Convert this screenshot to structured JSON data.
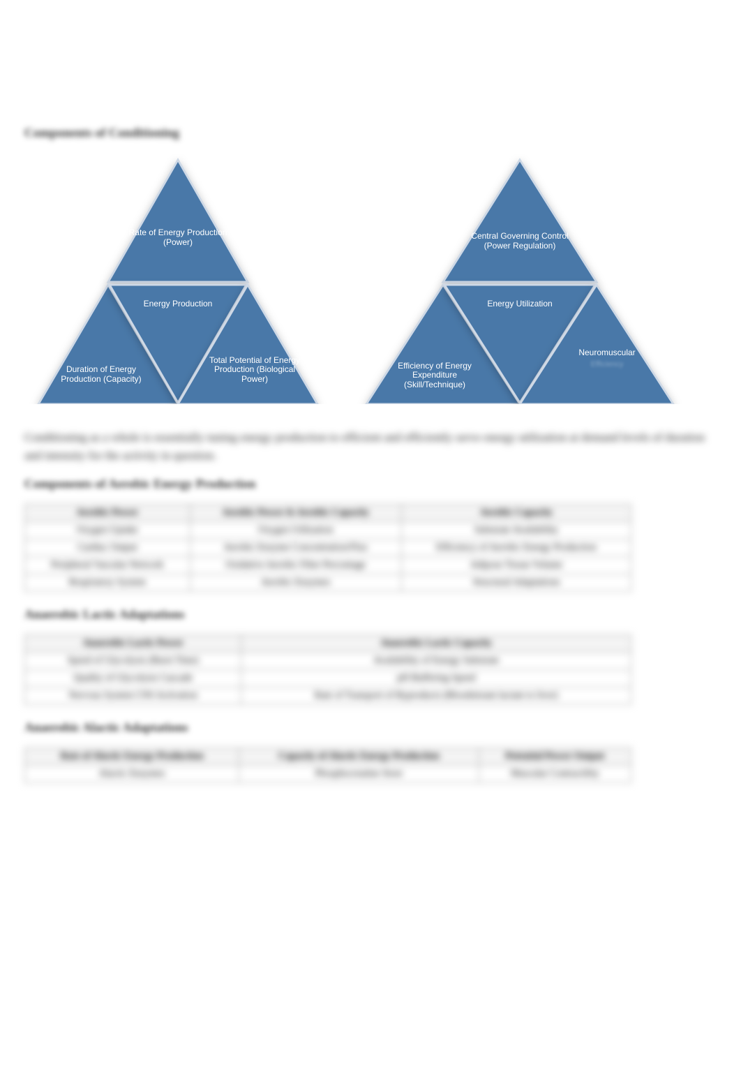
{
  "headings": {
    "components_conditioning": "Components of Conditioning",
    "aerobic_components": "Components of Aerobic Energy Production",
    "anaerobic_lactic": "Anaerobic Lactic Adaptations",
    "anaerobic_alactic": "Anaerobic Alactic Adaptations"
  },
  "triangles": {
    "left": {
      "top": "Rate of Energy Production (Power)",
      "mid": "Energy Production",
      "bl": "Duration of Energy Production (Capacity)",
      "br": "Total Potential of Energy Production (Biological Power)"
    },
    "right": {
      "top": "Central Governing Control (Power Regulation)",
      "mid": "Energy Utilization",
      "bl": "Efficiency of Energy Expenditure (Skill/Technique)",
      "br": "Neuromuscular",
      "br_sub": "Efficiency"
    },
    "color": "#4a78a8",
    "stroke": "#cfd9e6"
  },
  "definition": "Conditioning as a whole is essentially tuning energy production to efficient and efficiently serve energy utilization at demand levels of duration and intensity for the activity in question.",
  "table_aerobic": {
    "headers": [
      "Aerobic Power",
      "Aerobic Power & Aerobic Capacity",
      "Aerobic Capacity"
    ],
    "rows": [
      [
        "Oxygen Uptake",
        "Oxygen Utilization",
        "Substrate Availability"
      ],
      [
        "Cardiac Output",
        "Aerobic Enzyme Concentration/Flux",
        "Efficiency of Aerobic Energy Production"
      ],
      [
        "Peripheral Vascular Network",
        "Oxidative Aerobic Fiber Percentage",
        "Adipose Tissue Volume"
      ],
      [
        "Respiratory System",
        "Aerobic Enzymes",
        "Structural Adaptations"
      ]
    ]
  },
  "table_lactic": {
    "headers": [
      "Anaerobic Lactic Power",
      "Anaerobic Lactic Capacity"
    ],
    "rows": [
      [
        "Speed of Glycolysis (Burst Time)",
        "Availability of Energy Substrate"
      ],
      [
        "Quality of Glycolysis Cascade",
        "pH Buffering Speed"
      ],
      [
        "Nervous System CNS Activation",
        "Rate of Transport of Byproducts (Bloodstream lactate to liver)"
      ]
    ]
  },
  "table_alactic": {
    "headers": [
      "Rate of Alactic Energy Production",
      "Capacity of Alactic Energy Production",
      "Potential Power Output"
    ],
    "rows": [
      [
        "Alactic Enzymes",
        "Phosphocreatine Store",
        "Muscular Contractility"
      ]
    ]
  }
}
